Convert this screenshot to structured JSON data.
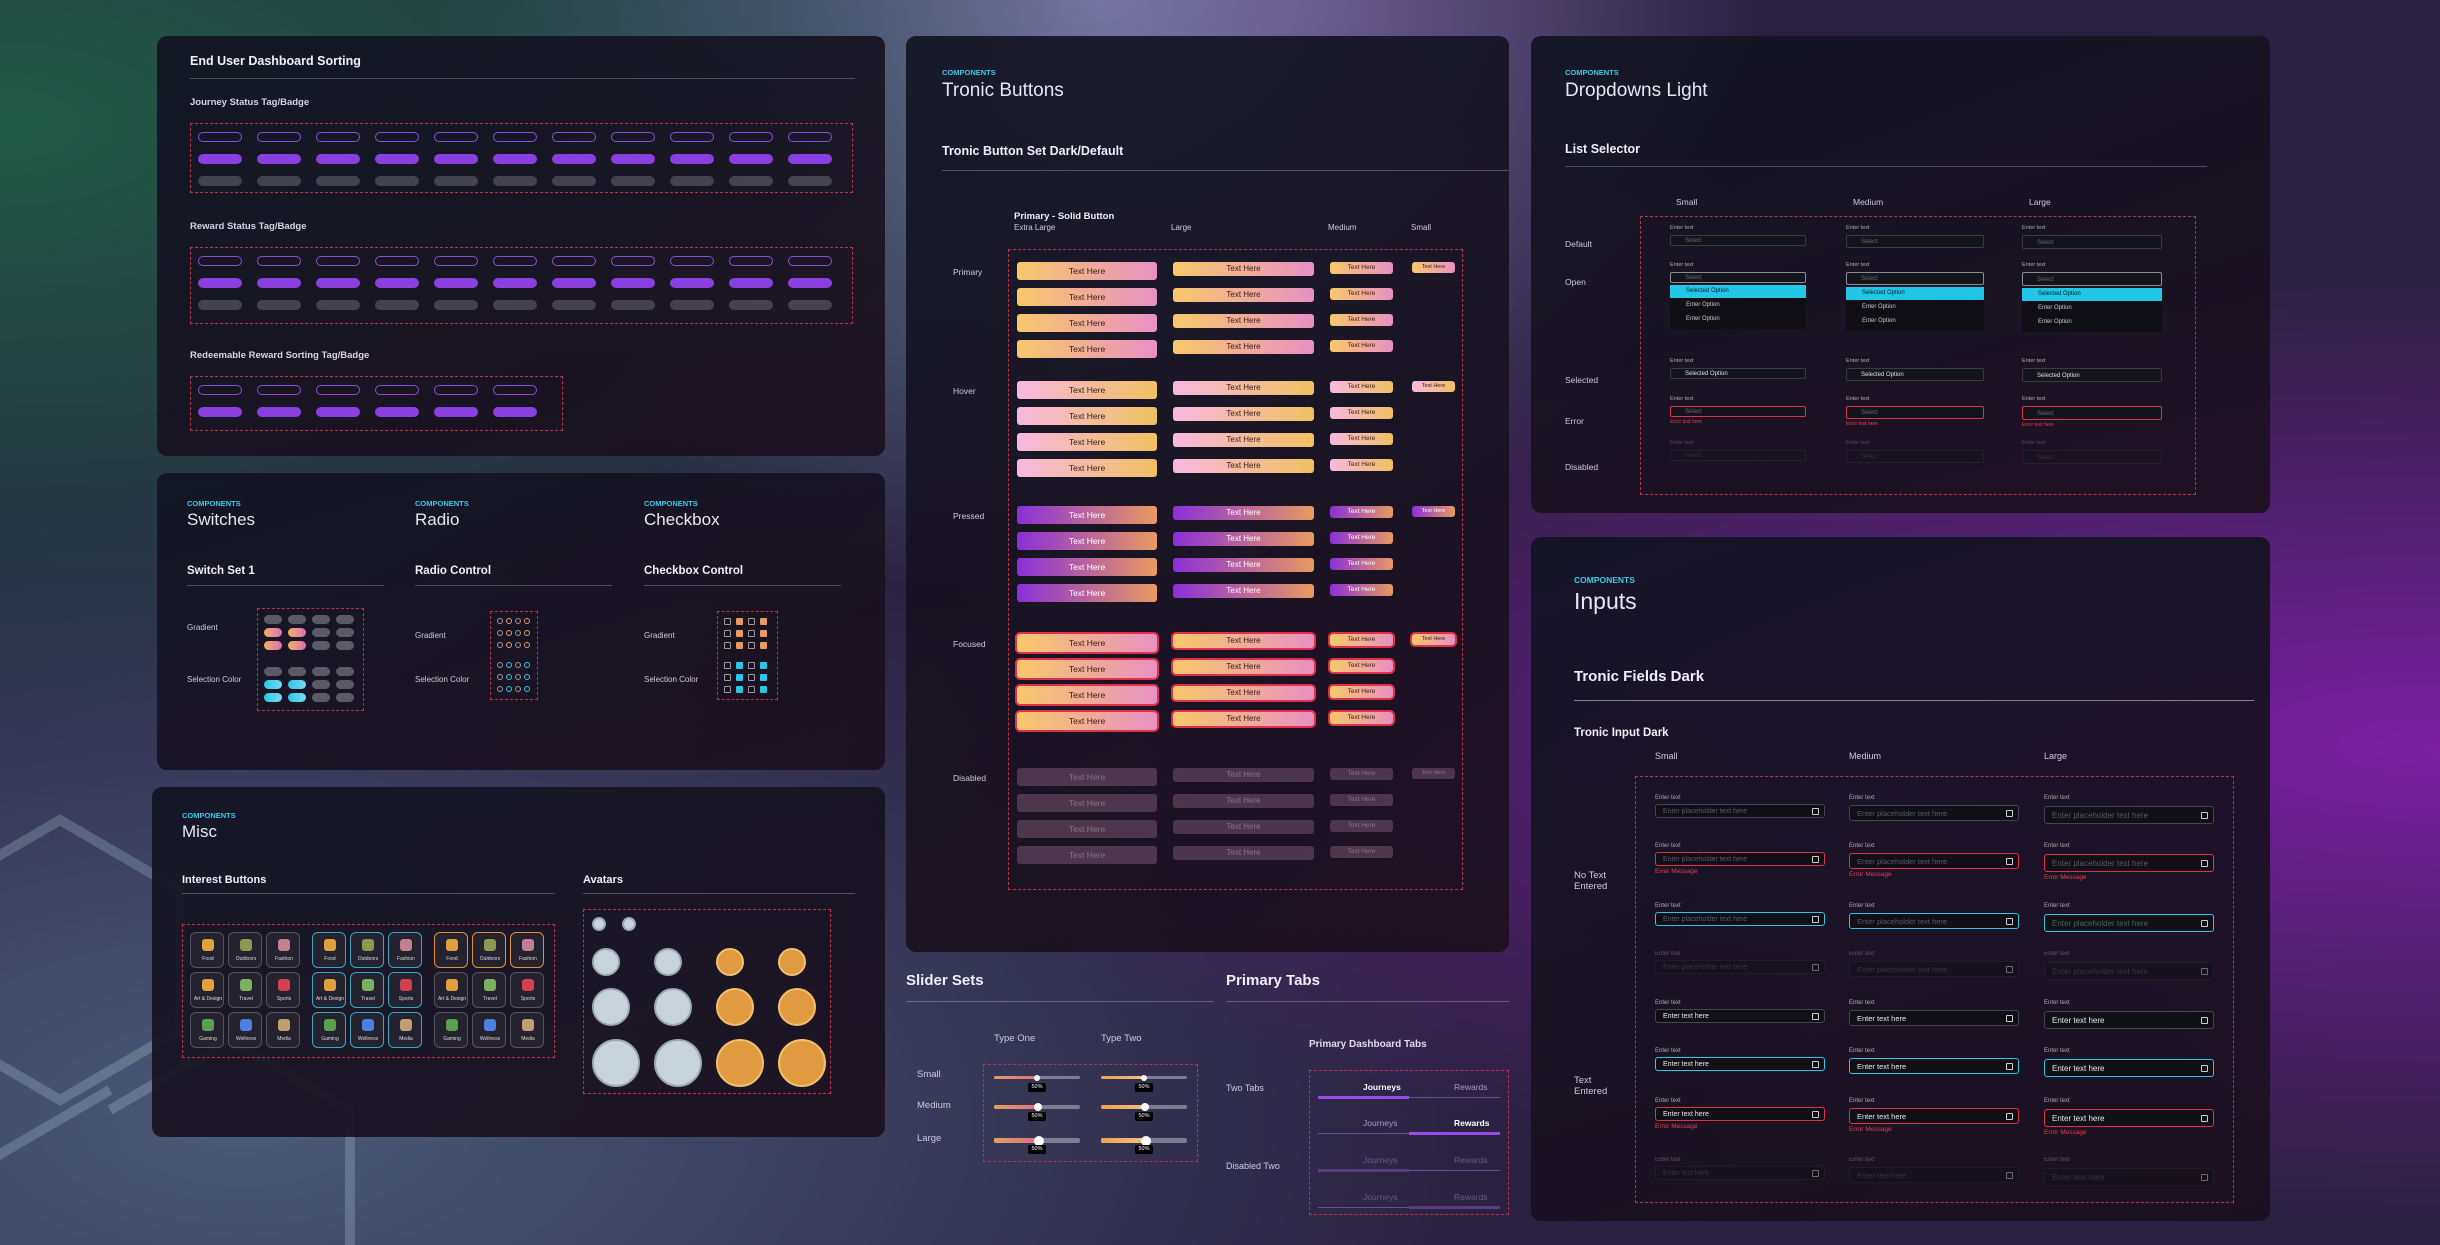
{
  "sorting": {
    "title": "End User Dashboard Sorting",
    "groups": [
      "Journey Status Tag/Badge",
      "Reward Status Tag/Badge",
      "Redeemable Reward Sorting Tag/Badge"
    ]
  },
  "switches": {
    "eyebrow": "COMPONENTS",
    "title": "Switches",
    "section": "Switch Set 1",
    "rows": [
      "Gradient",
      "Selection Color"
    ]
  },
  "radio": {
    "eyebrow": "COMPONENTS",
    "title": "Radio",
    "section": "Radio Control",
    "rows": [
      "Gradient",
      "Selection Color"
    ]
  },
  "checkbox": {
    "eyebrow": "COMPONENTS",
    "title": "Checkbox",
    "section": "Checkbox Control",
    "rows": [
      "Gradient",
      "Selection Color"
    ]
  },
  "misc": {
    "eyebrow": "COMPONENTS",
    "title": "Misc",
    "interest_title": "Interest Buttons",
    "interests": [
      "Food",
      "Outdoors",
      "Fashion",
      "Art & Design",
      "Travel",
      "Sports",
      "Gaming",
      "Wellness",
      "Media"
    ],
    "avatars_title": "Avatars"
  },
  "buttons": {
    "eyebrow": "COMPONENTS",
    "title": "Tronic Buttons",
    "set_title": "Tronic Button Set Dark/Default",
    "group": "Primary - Solid Button",
    "sizes": [
      "Extra Large",
      "Large",
      "Medium",
      "Small"
    ],
    "states": [
      "Primary",
      "Hover",
      "Pressed",
      "Focused",
      "Disabled"
    ],
    "label": "Text Here"
  },
  "dropdowns": {
    "eyebrow": "COMPONENTS",
    "title": "Dropdowns Light",
    "section": "List Selector",
    "sizes": [
      "Small",
      "Medium",
      "Large"
    ],
    "states": [
      "Default",
      "Open",
      "Selected",
      "Error",
      "Disabled"
    ],
    "field_label": "Enter text",
    "placeholder": "Select",
    "options": [
      "Selected Option",
      "Enter Option",
      "Enter Option"
    ],
    "error": "Error text here"
  },
  "inputs": {
    "eyebrow": "COMPONENTS",
    "title": "Inputs",
    "section": "Tronic Fields Dark",
    "subsection": "Tronic Input Dark",
    "sizes": [
      "Small",
      "Medium",
      "Large"
    ],
    "states": [
      "No Text Entered",
      "Text Entered"
    ],
    "field_label": "Enter text",
    "placeholder": "Enter placeholder text here",
    "value": "Enter text here",
    "error": "Error Message"
  },
  "sliders": {
    "title": "Slider Sets",
    "types": [
      "Type One",
      "Type Two"
    ],
    "sizes": [
      "Small",
      "Medium",
      "Large"
    ],
    "value": "50%"
  },
  "tabs": {
    "title": "Primary Tabs",
    "subtitle": "Primary Dashboard Tabs",
    "rows": [
      "Two Tabs",
      "Disabled Two"
    ],
    "tabs": [
      "Journeys",
      "Rewards"
    ]
  }
}
